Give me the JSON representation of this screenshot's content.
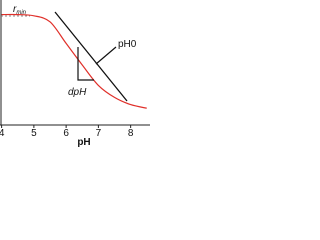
{
  "chart_data": {
    "type": "line",
    "x_label": "pH",
    "annotations": {
      "rmin": "r",
      "rmin_sub": "min",
      "ph0": "pH0",
      "dph": "dpH"
    },
    "x": [
      4,
      4.5,
      5,
      5.5,
      6,
      6.5,
      7,
      7.5,
      8,
      8.5
    ],
    "series": [
      {
        "color": "#e0302a",
        "values": [
          0.92,
          0.92,
          0.91,
          0.86,
          0.68,
          0.5,
          0.33,
          0.23,
          0.17,
          0.14
        ]
      }
    ],
    "xlim": [
      3.95,
      8.6
    ],
    "ylim": [
      0,
      1
    ],
    "xticks": [
      4,
      5,
      6,
      7,
      8
    ]
  }
}
